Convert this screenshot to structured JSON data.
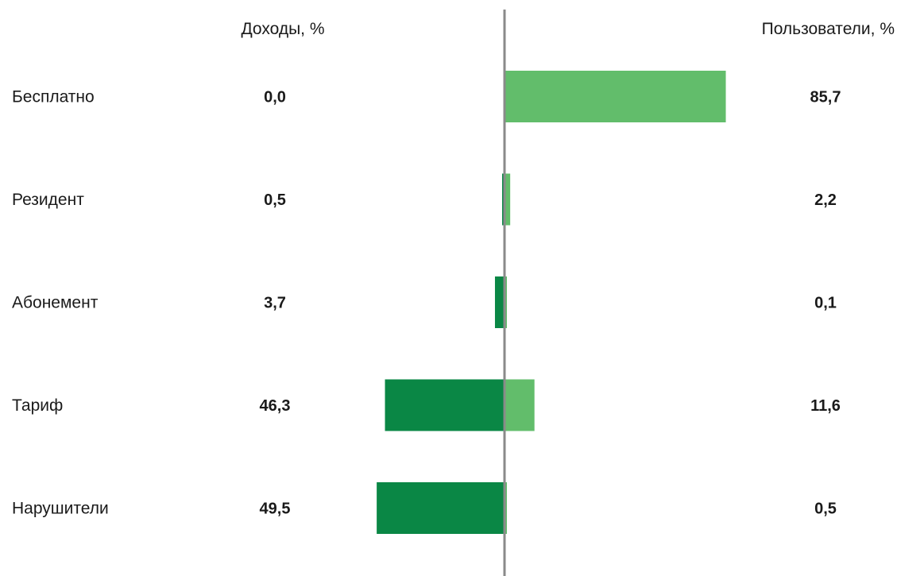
{
  "chart_data": {
    "type": "bar",
    "orientation": "horizontal-diverging",
    "categories": [
      "Бесплатно",
      "Резидент",
      "Абонемент",
      "Тариф",
      "Нарушители"
    ],
    "series": [
      {
        "name": "Доходы, %",
        "values": [
          0.0,
          0.5,
          3.7,
          46.3,
          49.5
        ],
        "labels": [
          "0,0",
          "0,5",
          "3,7",
          "46,3",
          "49,5"
        ],
        "color": "#0a8745",
        "side": "left"
      },
      {
        "name": "Пользователи, %",
        "values": [
          85.7,
          2.2,
          0.1,
          11.6,
          0.5
        ],
        "labels": [
          "85,7",
          "2,2",
          "0,1",
          "11,6",
          "0,5"
        ],
        "color": "#62bd6b",
        "side": "right"
      }
    ],
    "axis_color": "#8a8a8a",
    "grid": false,
    "legend": "none"
  }
}
